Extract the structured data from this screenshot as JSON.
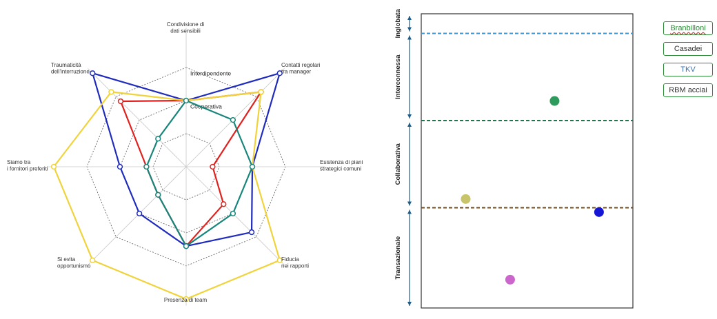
{
  "chart_data": [
    {
      "type": "radar",
      "axes": [
        "Condivisione di\ndati sensibili",
        "Contatti regolari\ntra manager",
        "Esistenza di piani\nstrategici comuni",
        "Fiducia\nnei rapporti",
        "Presenza di team\n",
        "Si evita\nopportunismo",
        "Siamo tra\ni fornitori preferiti",
        "Traumaticità\ndell'interruzione"
      ],
      "level_labels": [
        "Interdipendente",
        "Cooperativa"
      ],
      "scale_max": 10,
      "series": [
        {
          "name": "blue",
          "color": "#1f2bbd",
          "values": [
            5,
            10,
            5,
            7,
            6,
            5,
            5,
            10
          ]
        },
        {
          "name": "red",
          "color": "#e0211d",
          "values": [
            5,
            8,
            2,
            4,
            6,
            3,
            3,
            7
          ]
        },
        {
          "name": "yellow",
          "color": "#f0d33a",
          "values": [
            5,
            8,
            5,
            10,
            10,
            10,
            10,
            8
          ]
        },
        {
          "name": "teal",
          "color": "#16857a",
          "values": [
            5,
            5,
            5,
            5,
            6,
            3,
            3,
            3
          ]
        }
      ]
    },
    {
      "type": "scatter",
      "bands": [
        "Inglobata",
        "Interconnessa",
        "Collaborativa",
        "Transazionale"
      ],
      "points": [
        {
          "label": "Casadei",
          "color": "#2e9a5c",
          "x": 6.3,
          "y": 9.5
        },
        {
          "label": "Branbilloni",
          "color": "#c8c46a",
          "x": 2.1,
          "y": 5.0
        },
        {
          "label": "TKV",
          "color": "#1515d6",
          "x": 8.4,
          "y": 4.4
        },
        {
          "label": "RBM acciai",
          "color": "#cc66cc",
          "x": 4.2,
          "y": 1.3
        }
      ],
      "xlim": [
        0,
        10
      ],
      "ylim": [
        0,
        13.5
      ],
      "band_edges": [
        13.5,
        12.6,
        8.6,
        4.6,
        0
      ],
      "boundary_colors": [
        "#3399dd",
        "#1b7a4a",
        "#7a4a10"
      ]
    }
  ],
  "legend": [
    "Branbilloni",
    "Casadei",
    "TKV",
    "RBM acciai"
  ]
}
